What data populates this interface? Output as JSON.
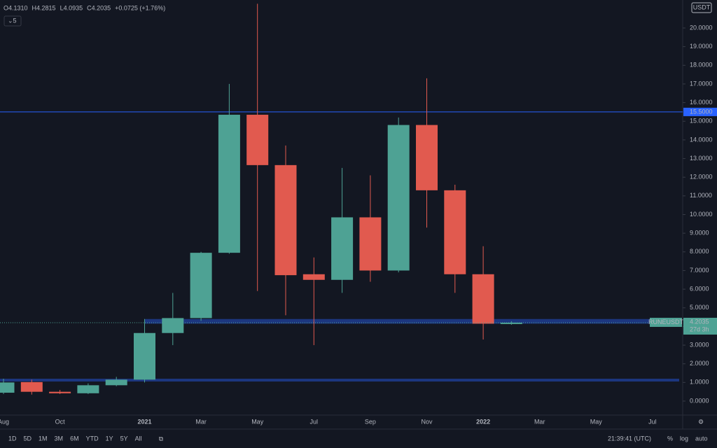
{
  "chart_data": {
    "type": "candlestick",
    "header": [
      "O4.1310",
      "H4.2815",
      "L4.0935",
      "C4.2035",
      "+0.0725 (+1.76%)"
    ],
    "interval": "5",
    "currency": "USDT",
    "categories": [
      "Aug",
      null,
      "Oct",
      null,
      null,
      "2021",
      null,
      "Mar",
      null,
      "May",
      null,
      "Jul",
      null,
      "Sep",
      null,
      "Nov",
      null,
      "2022",
      null,
      "Mar",
      null,
      "May",
      null,
      "Jul"
    ],
    "open": [
      0.45,
      1.02,
      0.5,
      0.42,
      0.85,
      1.15,
      3.65,
      4.45,
      7.95,
      15.35,
      12.65,
      6.8,
      6.5,
      9.85,
      7.0,
      14.8,
      11.3,
      6.8,
      4.131,
      null,
      null,
      null,
      null,
      null
    ],
    "high": [
      1.2,
      1.15,
      0.6,
      0.95,
      1.3,
      4.4,
      5.8,
      8.0,
      17.0,
      21.3,
      13.7,
      7.7,
      12.5,
      12.1,
      15.2,
      17.3,
      11.6,
      8.3,
      4.2815,
      null,
      null,
      null,
      null,
      null
    ],
    "low": [
      0.38,
      0.35,
      0.38,
      0.38,
      0.8,
      1.0,
      3.0,
      4.3,
      7.9,
      5.9,
      4.6,
      3.0,
      5.8,
      6.4,
      6.9,
      9.3,
      5.8,
      3.3,
      4.0935,
      null,
      null,
      null,
      null,
      null
    ],
    "close": [
      1.0,
      0.5,
      0.42,
      0.85,
      1.15,
      3.65,
      4.45,
      7.95,
      15.35,
      12.65,
      6.75,
      6.5,
      9.85,
      7.0,
      14.8,
      11.3,
      6.8,
      4.15,
      4.2035,
      null,
      null,
      null,
      null,
      null
    ],
    "up_color": "#4ea294",
    "down_color": "#e15a4f",
    "ylim": [
      -0.75,
      21.5
    ],
    "yticks": [
      {
        "value": 0,
        "label": "0.0000"
      },
      {
        "value": 1,
        "label": "1.0000"
      },
      {
        "value": 2,
        "label": "2.0000"
      },
      {
        "value": 3,
        "label": "3.0000"
      },
      {
        "value": 4,
        "label": "4.0000"
      },
      {
        "value": 5,
        "label": "5.0000"
      },
      {
        "value": 6,
        "label": "6.0000"
      },
      {
        "value": 7,
        "label": "7.0000"
      },
      {
        "value": 8,
        "label": "8.0000"
      },
      {
        "value": 9,
        "label": "9.0000"
      },
      {
        "value": 10,
        "label": "10.0000"
      },
      {
        "value": 11,
        "label": "11.0000"
      },
      {
        "value": 12,
        "label": "12.0000"
      },
      {
        "value": 13,
        "label": "13.0000"
      },
      {
        "value": 14,
        "label": "14.0000"
      },
      {
        "value": 15,
        "label": "15.0000"
      },
      {
        "value": 16,
        "label": "16.0000"
      },
      {
        "value": 17,
        "label": "17.0000"
      },
      {
        "value": 18,
        "label": "18.0000"
      },
      {
        "value": 19,
        "label": "19.0000"
      },
      {
        "value": 20,
        "label": "20.0000"
      }
    ],
    "level": {
      "value": 15.5,
      "label": "15.5000",
      "color": "#2962ff"
    },
    "zones": [
      {
        "from": 4.15,
        "to": 4.4,
        "start": 5,
        "color": "#1e3a8a"
      },
      {
        "from": 1.05,
        "to": 1.2,
        "color": "#1e3a8a"
      }
    ],
    "symbol": "RUNEUSDT",
    "countdown": "27d 3h"
  },
  "toolbar": {
    "ranges": [
      "1D",
      "5D",
      "1M",
      "3M",
      "6M",
      "YTD",
      "1Y",
      "5Y",
      "All"
    ],
    "clock": "21:39:41 (UTC)",
    "options": [
      "%",
      "log",
      "auto"
    ]
  }
}
